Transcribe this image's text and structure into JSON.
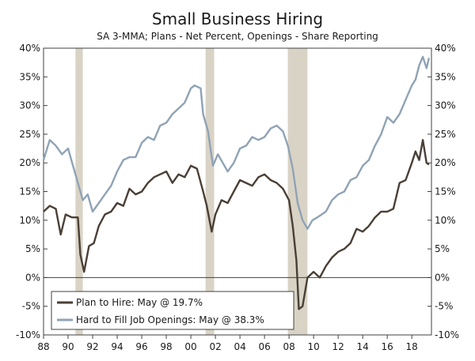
{
  "chart_data": {
    "type": "line",
    "title": "Small Business Hiring",
    "subtitle": "SA 3-MMA; Plans - Net Percent, Openings - Share Reporting",
    "xlabel": "",
    "ylabel": "",
    "xlim": [
      1988,
      2019.6
    ],
    "ylim": [
      -10,
      40
    ],
    "y_ticks": [
      40,
      35,
      30,
      25,
      20,
      15,
      10,
      5,
      0,
      -5,
      -10
    ],
    "y_tick_labels": [
      "40%",
      "35%",
      "30%",
      "25%",
      "20%",
      "15%",
      "10%",
      "5%",
      "0%",
      "-5%",
      "-10%"
    ],
    "x_ticks": [
      1988,
      1990,
      1992,
      1994,
      1996,
      1998,
      2000,
      2002,
      2004,
      2006,
      2008,
      2010,
      2012,
      2014,
      2016,
      2018
    ],
    "x_tick_labels": [
      "88",
      "90",
      "92",
      "94",
      "96",
      "98",
      "00",
      "02",
      "04",
      "06",
      "08",
      "10",
      "12",
      "14",
      "16",
      "18"
    ],
    "recessions": [
      {
        "start": 1990.6,
        "end": 1991.2
      },
      {
        "start": 2001.2,
        "end": 2001.9
      },
      {
        "start": 2007.9,
        "end": 2009.5
      }
    ],
    "legend_position": "bottom-left",
    "series": [
      {
        "name": "Plan to Hire: May @ 19.7%",
        "color": "#4a3f36",
        "x": [
          1988.0,
          1988.5,
          1989.0,
          1989.4,
          1989.8,
          1990.3,
          1990.8,
          1991.0,
          1991.3,
          1991.7,
          1992.1,
          1992.5,
          1993.0,
          1993.5,
          1994.0,
          1994.5,
          1995.0,
          1995.5,
          1996.0,
          1996.5,
          1997.0,
          1997.5,
          1998.0,
          1998.5,
          1999.0,
          1999.5,
          2000.0,
          2000.5,
          2001.0,
          2001.3,
          2001.7,
          2002.0,
          2002.5,
          2003.0,
          2003.5,
          2004.0,
          2004.5,
          2005.0,
          2005.5,
          2006.0,
          2006.5,
          2007.0,
          2007.5,
          2008.0,
          2008.3,
          2008.6,
          2008.8,
          2009.1,
          2009.5,
          2010.0,
          2010.5,
          2011.0,
          2011.5,
          2012.0,
          2012.5,
          2013.0,
          2013.5,
          2014.0,
          2014.5,
          2015.0,
          2015.5,
          2016.0,
          2016.5,
          2017.0,
          2017.5,
          2018.0,
          2018.3,
          2018.6,
          2018.9,
          2019.2,
          2019.4
        ],
        "values": [
          11.5,
          12.5,
          12.0,
          7.5,
          11.0,
          10.5,
          10.5,
          4.0,
          1.0,
          5.5,
          6.0,
          9.0,
          11.0,
          11.5,
          13.0,
          12.5,
          15.5,
          14.5,
          15.0,
          16.5,
          17.5,
          18.0,
          18.5,
          16.5,
          18.0,
          17.5,
          19.5,
          19.0,
          15.0,
          12.5,
          8.0,
          11.0,
          13.5,
          13.0,
          15.0,
          17.0,
          16.5,
          16.0,
          17.5,
          18.0,
          17.0,
          16.5,
          15.5,
          13.5,
          9.0,
          3.0,
          -5.5,
          -5.0,
          0.0,
          1.0,
          0.0,
          2.0,
          3.5,
          4.5,
          5.0,
          6.0,
          8.5,
          8.0,
          9.0,
          10.5,
          11.5,
          11.5,
          12.0,
          16.5,
          17.0,
          20.0,
          22.0,
          20.5,
          24.0,
          20.0,
          19.7
        ]
      },
      {
        "name": "Hard to Fill Job Openings: May @ 38.3%",
        "color": "#8fa3b5",
        "x": [
          1988.0,
          1988.5,
          1989.0,
          1989.5,
          1990.0,
          1990.4,
          1990.8,
          1991.2,
          1991.6,
          1992.0,
          1992.5,
          1993.0,
          1993.5,
          1994.0,
          1994.5,
          1995.0,
          1995.5,
          1996.0,
          1996.5,
          1997.0,
          1997.5,
          1998.0,
          1998.5,
          1999.0,
          1999.5,
          2000.0,
          2000.3,
          2000.8,
          2001.0,
          2001.4,
          2001.8,
          2002.2,
          2002.6,
          2003.0,
          2003.5,
          2004.0,
          2004.5,
          2005.0,
          2005.5,
          2006.0,
          2006.5,
          2007.0,
          2007.5,
          2007.9,
          2008.3,
          2008.7,
          2009.1,
          2009.5,
          2009.9,
          2010.3,
          2011.0,
          2011.5,
          2012.0,
          2012.5,
          2013.0,
          2013.5,
          2014.0,
          2014.5,
          2015.0,
          2015.5,
          2016.0,
          2016.5,
          2017.0,
          2017.5,
          2018.0,
          2018.3,
          2018.6,
          2018.9,
          2019.2,
          2019.4
        ],
        "values": [
          20.5,
          24.0,
          23.0,
          21.5,
          22.5,
          19.5,
          16.5,
          13.5,
          14.5,
          11.5,
          13.0,
          14.5,
          16.0,
          18.5,
          20.5,
          21.0,
          21.0,
          23.5,
          24.5,
          24.0,
          26.5,
          27.0,
          28.5,
          29.5,
          30.5,
          33.0,
          33.5,
          33.0,
          28.5,
          25.5,
          19.5,
          21.5,
          20.0,
          18.5,
          20.0,
          22.5,
          23.0,
          24.5,
          24.0,
          24.5,
          26.0,
          26.5,
          25.5,
          23.0,
          19.0,
          13.0,
          10.0,
          8.5,
          10.0,
          10.5,
          11.5,
          13.5,
          14.5,
          15.0,
          17.0,
          17.5,
          19.5,
          20.5,
          23.0,
          25.0,
          28.0,
          27.0,
          28.5,
          31.0,
          33.5,
          34.5,
          37.0,
          38.5,
          36.5,
          38.3
        ]
      }
    ]
  }
}
